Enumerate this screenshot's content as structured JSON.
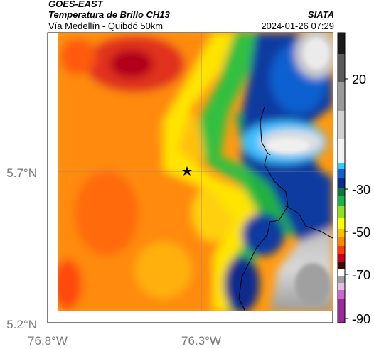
{
  "header": {
    "satellite": "GOES-EAST",
    "product": "Temperatura de Brillo CH13",
    "route": "Vía Medellín - Quibdó 50km",
    "brand": "SIATA",
    "timestamp": "2024-01-26 07:29"
  },
  "map": {
    "lat_labels": [
      "5.7°N",
      "5.2°N"
    ],
    "lon_labels": [
      "76.8°W",
      "76.3°W"
    ],
    "marker_icon": "star-icon"
  },
  "colorbar": {
    "labels": [
      "20",
      "-30",
      "-50",
      "-70",
      "-90"
    ],
    "colors": [
      "#f5f5f5",
      "#1a1a1a",
      "#7bd8ff",
      "#0a2c8c",
      "#1db24a",
      "#ffff00",
      "#ff8a00",
      "#c8001a",
      "#3a0a0a",
      "#cc66cc"
    ]
  }
}
